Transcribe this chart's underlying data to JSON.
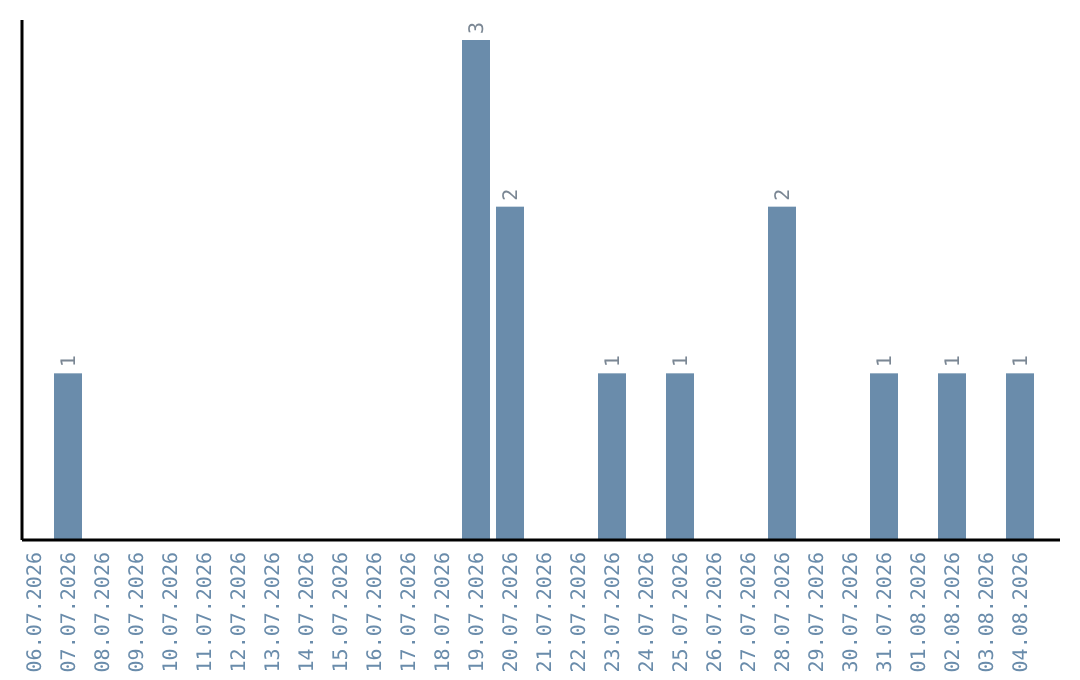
{
  "chart_data": {
    "type": "bar",
    "categories": [
      "06.07.2026",
      "07.07.2026",
      "08.07.2026",
      "09.07.2026",
      "10.07.2026",
      "11.07.2026",
      "12.07.2026",
      "13.07.2026",
      "14.07.2026",
      "15.07.2026",
      "16.07.2026",
      "17.07.2026",
      "18.07.2026",
      "19.07.2026",
      "20.07.2026",
      "21.07.2026",
      "22.07.2026",
      "23.07.2026",
      "24.07.2026",
      "25.07.2026",
      "26.07.2026",
      "27.07.2026",
      "28.07.2026",
      "29.07.2026",
      "30.07.2026",
      "31.07.2026",
      "01.08.2026",
      "02.08.2026",
      "03.08.2026",
      "04.08.2026"
    ],
    "values": [
      0,
      1,
      0,
      0,
      0,
      0,
      0,
      0,
      0,
      0,
      0,
      0,
      0,
      3,
      2,
      0,
      0,
      1,
      0,
      1,
      0,
      0,
      2,
      0,
      0,
      1,
      0,
      1,
      0,
      1
    ],
    "value_labels": [
      null,
      "1",
      null,
      null,
      null,
      null,
      null,
      null,
      null,
      null,
      null,
      null,
      null,
      "3",
      "2",
      null,
      null,
      "1",
      null,
      "1",
      null,
      null,
      "2",
      null,
      null,
      "1",
      null,
      "1",
      null,
      "1"
    ],
    "color": "#6a8cab",
    "tick_labels": "x"
  }
}
